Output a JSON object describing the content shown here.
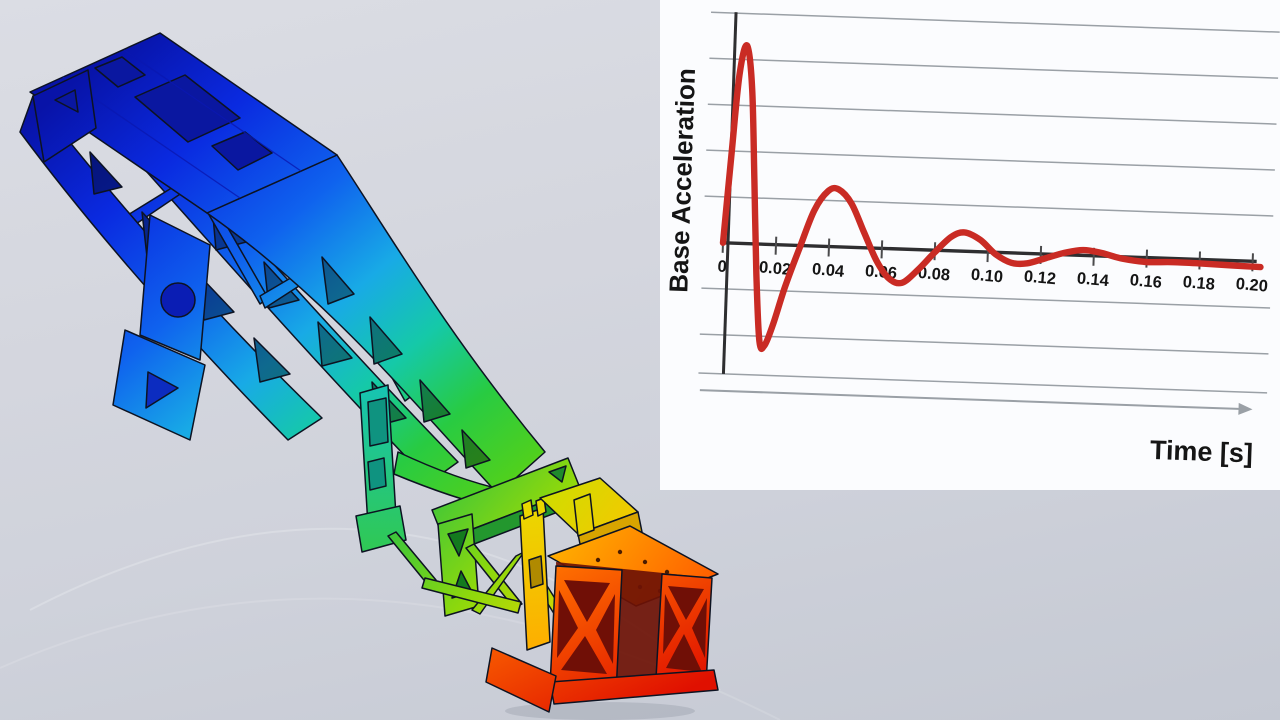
{
  "scene": {
    "background": {
      "top": "#dbdde4",
      "mid": "#d2d5dd",
      "bottom": "#c5c9d3"
    },
    "model": {
      "kind": "fea-contour-truss",
      "outline_color": "#0d1322",
      "gradient_stops": [
        [
          "0",
          "#0813a8"
        ],
        [
          "0.15",
          "#0a2ae0"
        ],
        [
          "0.30",
          "#0f62ee"
        ],
        [
          "0.42",
          "#18aae6"
        ],
        [
          "0.52",
          "#15c9a8"
        ],
        [
          "0.62",
          "#28cb42"
        ],
        [
          "0.72",
          "#4fd01e"
        ],
        [
          "0.78",
          "#a8dc04"
        ],
        [
          "0.84",
          "#eede00"
        ],
        [
          "0.90",
          "#ffb400"
        ],
        [
          "0.95",
          "#ff6000"
        ],
        [
          "1",
          "#e81600"
        ]
      ],
      "part_gradients": {
        "beam": [
          [
            "0",
            "#2bc244"
          ],
          [
            "0.5",
            "#8ed80c"
          ],
          [
            "1",
            "#f0d800"
          ]
        ],
        "post_teal": [
          [
            "0",
            "#17c4b0"
          ],
          [
            "1",
            "#2fc857"
          ]
        ],
        "post_yellow": [
          [
            "0",
            "#ead800"
          ],
          [
            "1",
            "#ffac00"
          ]
        ],
        "saddle": [
          [
            "0",
            "#cede00"
          ],
          [
            "1",
            "#ffc200"
          ]
        ],
        "platform": [
          [
            "0",
            "#ffb200"
          ],
          [
            "1",
            "#ff5600"
          ]
        ],
        "red_box": [
          [
            "0",
            "#ff7200"
          ],
          [
            "1",
            "#e01000"
          ]
        ]
      }
    }
  },
  "chart_data": {
    "type": "line",
    "title": "",
    "xlabel": "Time [s]",
    "ylabel": "Base Acceleration",
    "x_tick_labels": [
      "0",
      "0.02",
      "0.04",
      "0.06",
      "0.08",
      "0.10",
      "0.12",
      "0.14",
      "0.16",
      "0.18",
      "0.20"
    ],
    "xlim": [
      0,
      0.2
    ],
    "grid": true,
    "legend": "none",
    "panel_bg": "#fbfcfe",
    "gridline_color": "#9aa0a6",
    "axis_color": "#2e2e30",
    "label_color": "#151515",
    "rotation_deg": 2,
    "series": [
      {
        "name": "Base Acceleration",
        "color": "#c92b24",
        "points": [
          [
            0.0,
            0.0
          ],
          [
            0.002,
            0.44
          ],
          [
            0.004,
            0.85
          ],
          [
            0.0065,
            1.0
          ],
          [
            0.009,
            0.78
          ],
          [
            0.011,
            0.32
          ],
          [
            0.013,
            -0.15
          ],
          [
            0.015,
            -0.49
          ],
          [
            0.017,
            -0.51
          ],
          [
            0.02,
            -0.4
          ],
          [
            0.024,
            -0.21
          ],
          [
            0.029,
            -0.01
          ],
          [
            0.034,
            0.18
          ],
          [
            0.039,
            0.28
          ],
          [
            0.043,
            0.29
          ],
          [
            0.048,
            0.22
          ],
          [
            0.053,
            0.08
          ],
          [
            0.058,
            -0.06
          ],
          [
            0.063,
            -0.15
          ],
          [
            0.068,
            -0.17
          ],
          [
            0.074,
            -0.1
          ],
          [
            0.08,
            -0.01
          ],
          [
            0.086,
            0.07
          ],
          [
            0.091,
            0.095
          ],
          [
            0.097,
            0.06
          ],
          [
            0.103,
            -0.01
          ],
          [
            0.109,
            -0.05
          ],
          [
            0.115,
            -0.05
          ],
          [
            0.122,
            -0.02
          ],
          [
            0.129,
            0.01
          ],
          [
            0.136,
            0.027
          ],
          [
            0.143,
            0.015
          ],
          [
            0.151,
            -0.01
          ],
          [
            0.16,
            -0.022
          ],
          [
            0.17,
            -0.018
          ],
          [
            0.181,
            -0.02
          ],
          [
            0.192,
            -0.024
          ],
          [
            0.203,
            -0.028
          ]
        ]
      }
    ]
  }
}
